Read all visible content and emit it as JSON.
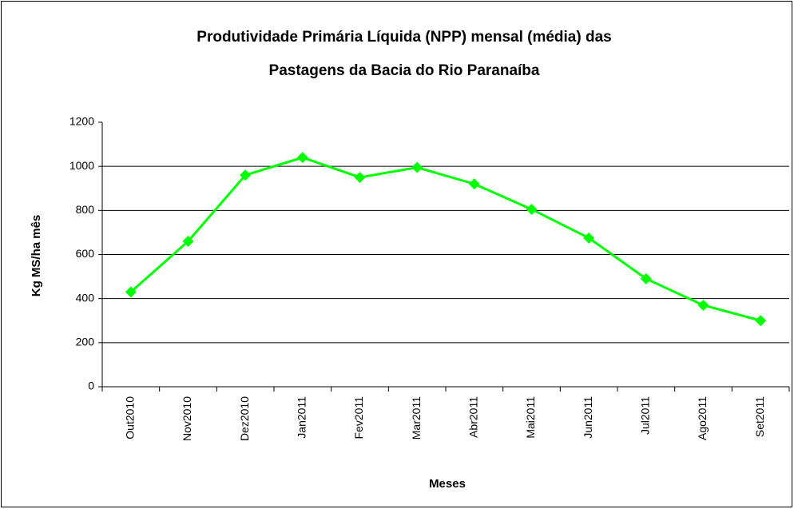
{
  "chart_data": {
    "type": "line",
    "title": [
      "Produtividade Primária Líquida (NPP) mensal (média) das",
      "Pastagens da Bacia do Rio Paranaíba"
    ],
    "x_label": "Meses",
    "y_label": "Kg MS/ha mês",
    "categories": [
      "Out2010",
      "Nov2010",
      "Dez2010",
      "Jan2011",
      "Fev2011",
      "Mar2011",
      "Abr2011",
      "Mai2011",
      "Jun2011",
      "Jul2011",
      "Ago2011",
      "Set2011"
    ],
    "values": [
      430,
      660,
      960,
      1040,
      950,
      995,
      920,
      805,
      675,
      490,
      370,
      300
    ],
    "color": "#00ff00",
    "ylim": [
      0,
      1200
    ],
    "yticks": [
      0,
      200,
      400,
      600,
      800,
      1000,
      1200
    ],
    "grid": true
  }
}
